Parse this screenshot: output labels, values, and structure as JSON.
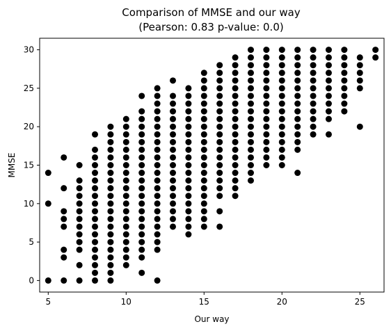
{
  "chart_data": {
    "type": "scatter",
    "title": "Comparison of MMSE and our way",
    "subtitle": "(Pearson: 0.83 p-value: 0.0)",
    "xlabel": "Our way",
    "ylabel": "MMSE",
    "xlim": [
      4.45,
      26.55
    ],
    "ylim": [
      -1.5,
      31.5
    ],
    "xticks": [
      5,
      10,
      15,
      20,
      25
    ],
    "yticks": [
      0,
      5,
      10,
      15,
      20,
      25,
      30
    ],
    "grid": false,
    "marker_color": "#000000",
    "columns": [
      {
        "x": 5,
        "y": [
          0,
          10,
          14
        ]
      },
      {
        "x": 6,
        "y": [
          0,
          3,
          4,
          7,
          8,
          9,
          12,
          16
        ]
      },
      {
        "x": 7,
        "y": [
          0,
          2,
          4,
          5,
          6,
          7,
          8,
          9,
          10,
          11,
          12,
          13,
          15
        ]
      },
      {
        "x": 8,
        "y": [
          0,
          1,
          2,
          3,
          4,
          5,
          6,
          7,
          8,
          9,
          10,
          11,
          12,
          13,
          14,
          15,
          16,
          17,
          19
        ]
      },
      {
        "x": 9,
        "y": [
          0,
          1,
          2,
          3,
          4,
          5,
          6,
          7,
          8,
          9,
          10,
          11,
          12,
          13,
          14,
          15,
          16,
          17,
          18,
          19,
          20
        ]
      },
      {
        "x": 10,
        "y": [
          2,
          3,
          4,
          5,
          6,
          7,
          8,
          9,
          10,
          11,
          12,
          13,
          14,
          15,
          16,
          17,
          18,
          19,
          20,
          21
        ]
      },
      {
        "x": 11,
        "y": [
          1,
          3,
          4,
          5,
          6,
          7,
          8,
          9,
          10,
          11,
          12,
          13,
          14,
          15,
          16,
          17,
          18,
          19,
          20,
          21,
          22,
          24
        ]
      },
      {
        "x": 12,
        "y": [
          0,
          4,
          5,
          6,
          7,
          8,
          9,
          10,
          11,
          12,
          13,
          14,
          15,
          16,
          17,
          18,
          19,
          20,
          21,
          22,
          23,
          24,
          25
        ]
      },
      {
        "x": 13,
        "y": [
          7,
          8,
          9,
          10,
          11,
          12,
          13,
          14,
          15,
          16,
          17,
          18,
          19,
          20,
          21,
          22,
          23,
          24,
          26
        ]
      },
      {
        "x": 14,
        "y": [
          6,
          7,
          8,
          9,
          10,
          11,
          12,
          13,
          14,
          15,
          16,
          17,
          18,
          19,
          20,
          21,
          22,
          23,
          24,
          25
        ]
      },
      {
        "x": 15,
        "y": [
          7,
          8,
          9,
          10,
          11,
          12,
          13,
          14,
          15,
          16,
          17,
          18,
          19,
          20,
          21,
          22,
          23,
          24,
          25,
          26,
          27
        ]
      },
      {
        "x": 16,
        "y": [
          7,
          9,
          11,
          12,
          13,
          14,
          15,
          16,
          17,
          18,
          19,
          20,
          21,
          22,
          23,
          24,
          25,
          26,
          27,
          28
        ]
      },
      {
        "x": 17,
        "y": [
          11,
          12,
          13,
          14,
          15,
          16,
          17,
          18,
          19,
          20,
          21,
          22,
          23,
          24,
          25,
          26,
          27,
          28,
          29
        ]
      },
      {
        "x": 18,
        "y": [
          13,
          14,
          15,
          16,
          17,
          18,
          19,
          20,
          21,
          22,
          23,
          24,
          25,
          26,
          27,
          28,
          29,
          30
        ]
      },
      {
        "x": 19,
        "y": [
          15,
          16,
          17,
          18,
          19,
          20,
          21,
          22,
          23,
          24,
          25,
          26,
          27,
          28,
          29,
          30
        ]
      },
      {
        "x": 20,
        "y": [
          15,
          16,
          17,
          18,
          19,
          20,
          21,
          22,
          23,
          24,
          25,
          26,
          27,
          28,
          29,
          30
        ]
      },
      {
        "x": 21,
        "y": [
          14,
          17,
          18,
          19,
          20,
          21,
          22,
          23,
          24,
          25,
          26,
          27,
          28,
          29,
          30
        ]
      },
      {
        "x": 22,
        "y": [
          19,
          20,
          21,
          22,
          23,
          24,
          25,
          26,
          27,
          28,
          29,
          30
        ]
      },
      {
        "x": 23,
        "y": [
          19,
          21,
          22,
          23,
          24,
          25,
          26,
          27,
          28,
          29,
          30
        ]
      },
      {
        "x": 24,
        "y": [
          22,
          23,
          24,
          25,
          26,
          27,
          28,
          29,
          30
        ]
      },
      {
        "x": 25,
        "y": [
          20,
          25,
          26,
          27,
          28,
          29
        ]
      },
      {
        "x": 26,
        "y": [
          29,
          30
        ]
      }
    ]
  }
}
